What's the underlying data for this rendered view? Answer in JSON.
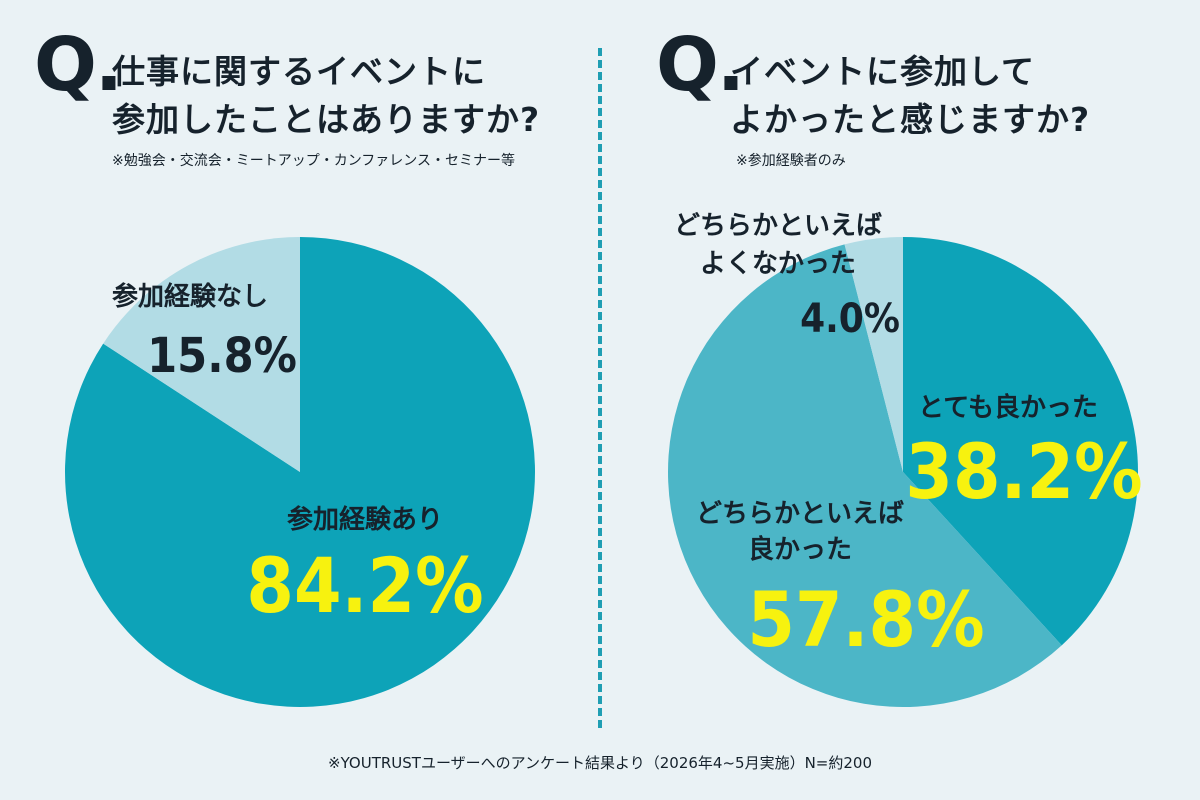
{
  "left": {
    "q_mark": "Q.",
    "title_line1": "仕事に関するイベントに",
    "title_line2": "参加したことはありますか?",
    "note": "※勉強会・交流会・ミートアップ・カンファレンス・セミナー等"
  },
  "right": {
    "q_mark": "Q.",
    "title_line1": "イベントに参加して",
    "title_line2": "よかったと感じますか?",
    "note": "※参加経験者のみ"
  },
  "footer": "※YOUTRUSTユーザーへのアンケート結果より（2026年4~5月実施）N=約200",
  "colors": {
    "primary": "#0da3b8",
    "secondary": "#4cb6c7",
    "light": "#b2dce5",
    "highlight": "#f7f20f",
    "text": "#16222c",
    "background": "#eaf2f5"
  },
  "chart_data": [
    {
      "type": "pie",
      "title": "仕事に関するイベントに参加したことはありますか?",
      "slices": [
        {
          "label": "参加経験あり",
          "value": 84.2,
          "display": "84.2%",
          "color": "#0da3b8"
        },
        {
          "label": "参加経験なし",
          "value": 15.8,
          "display": "15.8%",
          "color": "#b2dce5"
        }
      ]
    },
    {
      "type": "pie",
      "title": "イベントに参加してよかったと感じますか?",
      "slices": [
        {
          "label": "とても良かった",
          "value": 38.2,
          "display": "38.2%",
          "color": "#0da3b8"
        },
        {
          "label": "どちらかといえば良かった",
          "value": 57.8,
          "display": "57.8%",
          "color": "#4cb6c7"
        },
        {
          "label": "どちらかといえばよくなかった",
          "value": 4.0,
          "display": "4.0%",
          "color": "#b2dce5"
        }
      ]
    }
  ]
}
